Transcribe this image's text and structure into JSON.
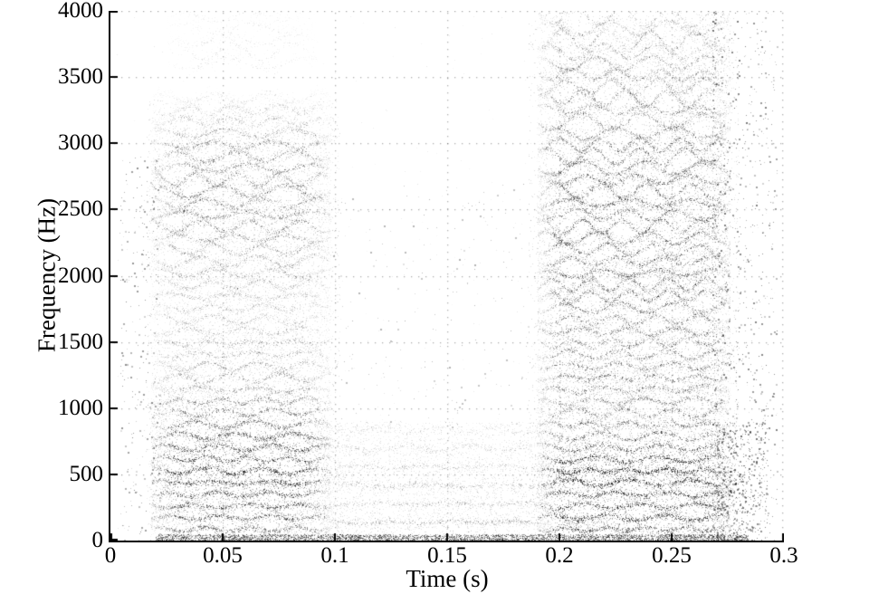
{
  "figure": {
    "background_color": "#ffffff",
    "axis_color": "#000000",
    "grid_color_alpha": 0.32,
    "title": ""
  },
  "chart_data": {
    "type": "scatter",
    "title": "",
    "xlabel": "Time (s)",
    "ylabel": "Frequency (Hz)",
    "xlim": [
      0,
      0.3
    ],
    "ylim": [
      0,
      4000
    ],
    "xticks": [
      0,
      0.05,
      0.1,
      0.15,
      0.2,
      0.25,
      0.3
    ],
    "xtick_labels": [
      "0",
      "0.05",
      "0.1",
      "0.15",
      "0.2",
      "0.25",
      "0.3"
    ],
    "yticks": [
      0,
      500,
      1000,
      1500,
      2000,
      2500,
      3000,
      3500,
      4000
    ],
    "ytick_labels": [
      "0",
      "500",
      "1000",
      "1500",
      "2000",
      "2500",
      "3000",
      "3500",
      "4000"
    ],
    "grid": "dotted",
    "grid_dot_spacing_px": 8,
    "legend": "none",
    "marker_size_px": 1,
    "colormap": "grayscale, darker = higher energy",
    "description": "Spectrogram-style grayscale scatter of time-frequency points. A voiced segment from t=0.018-0.098 s with wavy harmonic bands up to ~3350 Hz (dark below ~900 Hz, light gray 1100-2100 Hz, medium 2300-3000 Hz) plus faint wisps near 3600-3950 Hz; a quiet stretch t=0.095-0.195 s with only light bands below ~860 Hz and a dark strip hugging 0 Hz; a second dense voiced segment t=0.19-0.276 s spanning the full 0-4000 Hz range with very dark bands near 150/300/470/620 Hz, trailing sparse dots out to ~0.29 s.",
    "render_seed": 1337,
    "segments": [
      {
        "name": "voiced-segment-1",
        "t_range": [
          0.018,
          0.098
        ],
        "f_min": 80,
        "f_max": 3350,
        "f0_hz": 88,
        "wobble_amp_hz": 26,
        "wobble_wavelength_s": 0.024,
        "points_per_band": 620,
        "edge_fade_s": 0.012,
        "darkness_by_freq": [
          [
            0,
            0.45
          ],
          [
            150,
            0.62
          ],
          [
            300,
            0.6
          ],
          [
            470,
            0.8
          ],
          [
            620,
            0.68
          ],
          [
            780,
            0.62
          ],
          [
            950,
            0.5
          ],
          [
            1150,
            0.34
          ],
          [
            1450,
            0.28
          ],
          [
            1750,
            0.22
          ],
          [
            2050,
            0.26
          ],
          [
            2350,
            0.4
          ],
          [
            2650,
            0.44
          ],
          [
            2950,
            0.38
          ],
          [
            3150,
            0.26
          ],
          [
            3350,
            0.1
          ]
        ]
      },
      {
        "name": "high-wisps",
        "t_range": [
          0.025,
          0.092
        ],
        "f_min": 3580,
        "f_max": 3960,
        "f0_hz": 88,
        "wobble_amp_hz": 30,
        "wobble_wavelength_s": 0.03,
        "points_per_band": 260,
        "edge_fade_s": 0.015,
        "darkness_by_freq": [
          [
            3580,
            0.1
          ],
          [
            3700,
            0.13
          ],
          [
            3820,
            0.1
          ],
          [
            3960,
            0.08
          ]
        ]
      },
      {
        "name": "mid-low-bands",
        "t_range": [
          0.094,
          0.196
        ],
        "f_min": 60,
        "f_max": 860,
        "f0_hz": 140,
        "wobble_amp_hz": 22,
        "wobble_wavelength_s": 0.03,
        "points_per_band": 620,
        "edge_fade_s": 0.01,
        "darkness_by_freq": [
          [
            60,
            0.42
          ],
          [
            140,
            0.3
          ],
          [
            280,
            0.24
          ],
          [
            420,
            0.26
          ],
          [
            560,
            0.22
          ],
          [
            700,
            0.18
          ],
          [
            860,
            0.13
          ]
        ]
      },
      {
        "name": "voiced-segment-2",
        "t_range": [
          0.19,
          0.276
        ],
        "f_min": 80,
        "f_max": 4000,
        "f0_hz": 88,
        "wobble_amp_hz": 30,
        "wobble_wavelength_s": 0.022,
        "points_per_band": 640,
        "edge_fade_s": 0.01,
        "darkness_by_freq": [
          [
            0,
            0.5
          ],
          [
            150,
            0.75
          ],
          [
            300,
            0.68
          ],
          [
            470,
            0.82
          ],
          [
            620,
            0.75
          ],
          [
            800,
            0.52
          ],
          [
            1000,
            0.42
          ],
          [
            1300,
            0.46
          ],
          [
            1600,
            0.44
          ],
          [
            1900,
            0.48
          ],
          [
            2200,
            0.52
          ],
          [
            2500,
            0.53
          ],
          [
            2800,
            0.5
          ],
          [
            3100,
            0.44
          ],
          [
            3400,
            0.36
          ],
          [
            3700,
            0.3
          ],
          [
            3950,
            0.24
          ]
        ]
      }
    ],
    "noise": [
      {
        "name": "halo-left",
        "t_range": [
          0.016,
          0.102
        ],
        "f_range": [
          0,
          3350
        ],
        "count": 3200,
        "alpha": [
          0.05,
          0.16
        ]
      },
      {
        "name": "halo-right",
        "t_range": [
          0.186,
          0.28
        ],
        "f_range": [
          0,
          4000
        ],
        "count": 4200,
        "alpha": [
          0.06,
          0.18
        ]
      },
      {
        "name": "halo-mid-low",
        "t_range": [
          0.092,
          0.198
        ],
        "f_range": [
          0,
          900
        ],
        "count": 2400,
        "alpha": [
          0.05,
          0.14
        ]
      },
      {
        "name": "floor-strip",
        "t_range": [
          0.02,
          0.284
        ],
        "f_range": [
          0,
          48
        ],
        "count": 3800,
        "alpha": [
          0.18,
          0.55
        ]
      },
      {
        "name": "pre-onset-specks",
        "t_range": [
          0.004,
          0.022
        ],
        "f_range": [
          0,
          2900
        ],
        "count": 320,
        "alpha": [
          0.12,
          0.45
        ],
        "t_power": 1.4,
        "t_reverse": true,
        "size2_prob": 0.3
      },
      {
        "name": "mid-sparse-specks",
        "t_range": [
          0.096,
          0.192
        ],
        "f_range": [
          860,
          2700
        ],
        "count": 230,
        "alpha": [
          0.08,
          0.3
        ],
        "size2_prob": 0.2
      },
      {
        "name": "tail-specks",
        "t_range": [
          0.268,
          0.297
        ],
        "f_range": [
          0,
          4000
        ],
        "count": 900,
        "alpha": [
          0.15,
          0.5
        ],
        "t_power": 1.7,
        "size2_prob": 0.35
      },
      {
        "name": "tail-low-specks",
        "t_range": [
          0.27,
          0.293
        ],
        "f_range": [
          0,
          900
        ],
        "count": 500,
        "alpha": [
          0.2,
          0.55
        ],
        "t_power": 1.5,
        "size2_prob": 0.3
      },
      {
        "name": "ambient-specks",
        "t_range": [
          0.002,
          0.298
        ],
        "f_range": [
          0,
          4000
        ],
        "count": 450,
        "alpha": [
          0.03,
          0.1
        ]
      }
    ]
  }
}
